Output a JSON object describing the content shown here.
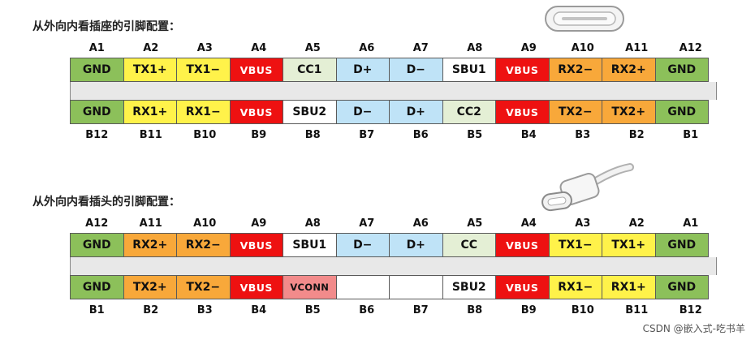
{
  "colors": {
    "green": "#8cc05a",
    "yellow": "#fff24a",
    "red": "#ee1111",
    "orange": "#f8a83a",
    "cc_green": "#e4efd5",
    "d_blue": "#bfe3f7",
    "white": "#ffffff",
    "pink": "#f28b8b"
  },
  "receptacle": {
    "heading": "从外向内看插座的引脚配置：",
    "top_labels": [
      "A1",
      "A2",
      "A3",
      "A4",
      "A5",
      "A6",
      "A7",
      "A8",
      "A9",
      "A10",
      "A11",
      "A12"
    ],
    "top_row": [
      {
        "text": "GND",
        "color": "green"
      },
      {
        "text": "TX1+",
        "color": "yellow"
      },
      {
        "text": "TX1−",
        "color": "yellow"
      },
      {
        "text": "VBUS",
        "color": "red"
      },
      {
        "text": "CC1",
        "color": "cc_green"
      },
      {
        "text": "D+",
        "color": "d_blue"
      },
      {
        "text": "D−",
        "color": "d_blue"
      },
      {
        "text": "SBU1",
        "color": "white"
      },
      {
        "text": "VBUS",
        "color": "red"
      },
      {
        "text": "RX2−",
        "color": "orange"
      },
      {
        "text": "RX2+",
        "color": "orange"
      },
      {
        "text": "GND",
        "color": "green"
      }
    ],
    "bottom_row": [
      {
        "text": "GND",
        "color": "green"
      },
      {
        "text": "RX1+",
        "color": "yellow"
      },
      {
        "text": "RX1−",
        "color": "yellow"
      },
      {
        "text": "VBUS",
        "color": "red"
      },
      {
        "text": "SBU2",
        "color": "white"
      },
      {
        "text": "D−",
        "color": "d_blue"
      },
      {
        "text": "D+",
        "color": "d_blue"
      },
      {
        "text": "CC2",
        "color": "cc_green"
      },
      {
        "text": "VBUS",
        "color": "red"
      },
      {
        "text": "TX2−",
        "color": "orange"
      },
      {
        "text": "TX2+",
        "color": "orange"
      },
      {
        "text": "GND",
        "color": "green"
      }
    ],
    "bottom_labels": [
      "B12",
      "B11",
      "B10",
      "B9",
      "B8",
      "B7",
      "B6",
      "B5",
      "B4",
      "B3",
      "B2",
      "B1"
    ]
  },
  "plug": {
    "heading": "从外向内看插头的引脚配置：",
    "top_labels": [
      "A12",
      "A11",
      "A10",
      "A9",
      "A8",
      "A7",
      "A6",
      "A5",
      "A4",
      "A3",
      "A2",
      "A1"
    ],
    "top_row": [
      {
        "text": "GND",
        "color": "green"
      },
      {
        "text": "RX2+",
        "color": "orange"
      },
      {
        "text": "RX2−",
        "color": "orange"
      },
      {
        "text": "VBUS",
        "color": "red"
      },
      {
        "text": "SBU1",
        "color": "white"
      },
      {
        "text": "D−",
        "color": "d_blue"
      },
      {
        "text": "D+",
        "color": "d_blue"
      },
      {
        "text": "CC",
        "color": "cc_green"
      },
      {
        "text": "VBUS",
        "color": "red"
      },
      {
        "text": "TX1−",
        "color": "yellow"
      },
      {
        "text": "TX1+",
        "color": "yellow"
      },
      {
        "text": "GND",
        "color": "green"
      }
    ],
    "bottom_row": [
      {
        "text": "GND",
        "color": "green"
      },
      {
        "text": "TX2+",
        "color": "orange"
      },
      {
        "text": "TX2−",
        "color": "orange"
      },
      {
        "text": "VBUS",
        "color": "red"
      },
      {
        "text": "VCONN",
        "color": "pink"
      },
      {
        "text": "",
        "color": "white"
      },
      {
        "text": "",
        "color": "white"
      },
      {
        "text": "SBU2",
        "color": "white"
      },
      {
        "text": "VBUS",
        "color": "red"
      },
      {
        "text": "RX1−",
        "color": "yellow"
      },
      {
        "text": "RX1+",
        "color": "yellow"
      },
      {
        "text": "GND",
        "color": "green"
      }
    ],
    "bottom_labels": [
      "B1",
      "B2",
      "B3",
      "B4",
      "B5",
      "B6",
      "B7",
      "B8",
      "B9",
      "B10",
      "B11",
      "B12"
    ]
  },
  "watermark": "CSDN @嵌入式-吃书羊"
}
